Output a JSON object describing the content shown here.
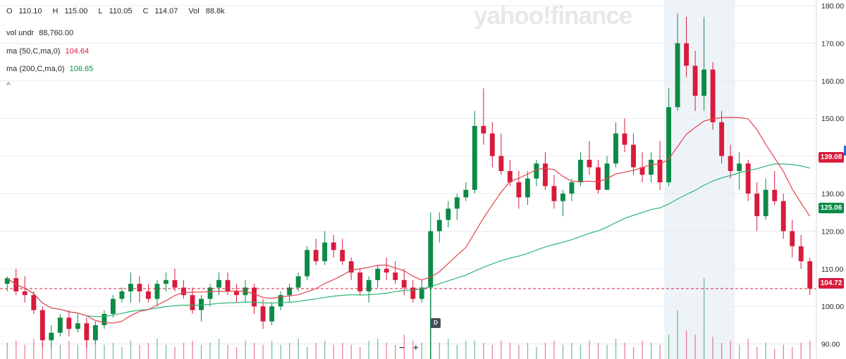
{
  "legend": {
    "open_label": "O",
    "open": "110.10",
    "high_label": "H",
    "high": "115.00",
    "low_label": "L",
    "low": "110.05",
    "close_label": "C",
    "close": "114.07",
    "volume_label": "Vol",
    "volume": "88.8k"
  },
  "indicators": {
    "vol_undr_label": "vol undr",
    "vol_undr_value": "88,760.00",
    "ma50_label": "ma (50,C,ma,0)",
    "ma50_value": "104.64",
    "ma200_label": "ma (200,C,ma,0)",
    "ma200_value": "106.65",
    "collapse_glyph": "^"
  },
  "watermark": "yahoo!finance",
  "price_tags": {
    "hover": "139.08",
    "ma200": "125.06",
    "last": "104.72"
  },
  "zoom": {
    "out": "−",
    "in": "+"
  },
  "dividend_marker": "D",
  "colors": {
    "up": "#0c8a46",
    "down": "#d81b3d",
    "ma50": "#e0454f",
    "ma200": "#2bb673",
    "grid": "#e8eaed",
    "highlight": "#eef3f8",
    "last_line": "#d81b3d"
  },
  "chart_data": {
    "type": "candlestick",
    "y_axis": {
      "ticks": [
        90,
        100,
        110,
        120,
        130,
        140,
        150,
        160,
        170,
        180
      ],
      "range": [
        86,
        181.5
      ],
      "side": "right"
    },
    "grid": true,
    "last_price_line": 104.72,
    "highlight_candles": [
      75,
      83
    ],
    "dividend_candle": 48,
    "candles": [
      [
        106,
        108,
        104,
        107.5
      ],
      [
        107.5,
        110,
        103,
        104
      ],
      [
        104,
        108,
        101,
        103
      ],
      [
        103,
        104,
        98,
        99
      ],
      [
        99,
        100,
        89,
        91
      ],
      [
        91,
        95,
        89,
        93
      ],
      [
        93,
        98,
        92,
        97
      ],
      [
        97,
        99,
        92,
        94
      ],
      [
        94,
        98,
        93,
        95.5
      ],
      [
        95.5,
        97,
        89,
        91
      ],
      [
        91,
        96,
        90,
        95
      ],
      [
        95,
        99,
        94,
        98
      ],
      [
        98,
        103,
        97,
        102
      ],
      [
        102,
        105,
        101,
        104
      ],
      [
        104,
        109,
        101,
        106
      ],
      [
        106,
        108,
        101,
        104
      ],
      [
        104,
        106,
        101,
        102
      ],
      [
        102,
        107,
        100,
        106
      ],
      [
        106,
        109,
        104,
        107
      ],
      [
        107,
        110,
        104,
        105
      ],
      [
        105,
        107,
        102,
        103
      ],
      [
        103,
        105,
        98,
        99
      ],
      [
        99,
        103,
        96,
        102
      ],
      [
        102,
        106,
        100,
        105
      ],
      [
        105,
        109,
        103,
        107
      ],
      [
        107,
        109,
        103,
        104
      ],
      [
        104,
        106,
        101,
        103
      ],
      [
        103,
        107,
        101,
        105
      ],
      [
        105,
        106,
        98,
        100
      ],
      [
        100,
        102,
        94,
        96
      ],
      [
        96,
        101,
        95,
        100
      ],
      [
        100,
        104,
        99,
        103
      ],
      [
        103,
        106,
        101,
        105
      ],
      [
        105,
        109,
        104,
        108
      ],
      [
        108,
        116,
        107,
        115
      ],
      [
        115,
        118,
        111,
        112
      ],
      [
        112,
        120,
        111,
        117
      ],
      [
        117,
        119,
        113,
        115
      ],
      [
        115,
        118,
        111,
        112
      ],
      [
        112,
        113,
        107,
        109
      ],
      [
        109,
        110,
        103,
        104
      ],
      [
        104,
        108,
        101,
        107
      ],
      [
        107,
        111,
        105,
        110
      ],
      [
        110,
        113,
        107,
        109
      ],
      [
        109,
        112,
        106,
        107
      ],
      [
        107,
        110,
        103,
        105
      ],
      [
        105,
        107,
        101,
        102
      ],
      [
        102,
        107,
        101,
        105
      ],
      [
        105,
        125,
        104,
        120
      ],
      [
        120,
        125,
        117,
        123
      ],
      [
        123,
        128,
        121,
        126
      ],
      [
        126,
        130,
        123,
        129
      ],
      [
        129,
        133,
        128,
        131
      ],
      [
        131,
        152,
        130,
        148
      ],
      [
        148,
        158,
        143,
        146
      ],
      [
        146,
        149,
        137,
        140
      ],
      [
        140,
        146,
        135,
        136
      ],
      [
        136,
        139,
        132,
        133
      ],
      [
        133,
        136,
        126,
        129
      ],
      [
        129,
        136,
        127,
        134
      ],
      [
        134,
        139,
        132,
        138
      ],
      [
        138,
        141,
        131,
        132
      ],
      [
        132,
        135,
        126,
        128
      ],
      [
        128,
        131,
        124,
        130
      ],
      [
        130,
        134,
        128,
        133
      ],
      [
        133,
        141,
        132,
        139
      ],
      [
        139,
        144,
        135,
        137
      ],
      [
        137,
        139,
        130,
        131
      ],
      [
        131,
        140,
        131,
        138
      ],
      [
        138,
        149,
        137,
        146
      ],
      [
        146,
        150,
        141,
        143
      ],
      [
        143,
        146,
        135,
        137
      ],
      [
        137,
        141,
        133,
        135
      ],
      [
        135,
        141,
        133,
        139
      ],
      [
        139,
        144,
        131,
        133
      ],
      [
        133,
        158,
        132,
        153
      ],
      [
        153,
        178,
        152,
        170
      ],
      [
        170,
        177,
        161,
        164
      ],
      [
        164,
        168,
        152,
        156
      ],
      [
        156,
        177,
        152,
        163
      ],
      [
        163,
        165,
        147,
        149
      ],
      [
        149,
        152,
        138,
        140
      ],
      [
        140,
        143,
        134,
        136
      ],
      [
        136,
        141,
        131,
        138
      ],
      [
        138,
        139,
        128,
        130
      ],
      [
        130,
        133,
        120,
        124
      ],
      [
        124,
        134,
        123,
        131
      ],
      [
        131,
        136,
        127,
        128
      ],
      [
        128,
        130,
        118,
        120
      ],
      [
        120,
        123,
        113,
        116
      ],
      [
        116,
        119,
        110,
        112
      ],
      [
        112,
        113,
        103,
        104.72
      ]
    ],
    "volumes": [
      8,
      9,
      7,
      10,
      8,
      6,
      7,
      9,
      7,
      11,
      9,
      7,
      8,
      6,
      9,
      7,
      8,
      10,
      7,
      6,
      8,
      9,
      7,
      8,
      10,
      7,
      6,
      9,
      8,
      7,
      9,
      7,
      8,
      10,
      6,
      8,
      9,
      7,
      8,
      7,
      6,
      9,
      10,
      8,
      7,
      12,
      9,
      8,
      14,
      8,
      10,
      7,
      9,
      9,
      8,
      7,
      9,
      8,
      7,
      8,
      6,
      8,
      9,
      7,
      8,
      7,
      9,
      8,
      7,
      10,
      8,
      6,
      9,
      8,
      7,
      12,
      24,
      14,
      12,
      40,
      11,
      8,
      9,
      7,
      10,
      6,
      8,
      5,
      7,
      6,
      8,
      9
    ]
  }
}
